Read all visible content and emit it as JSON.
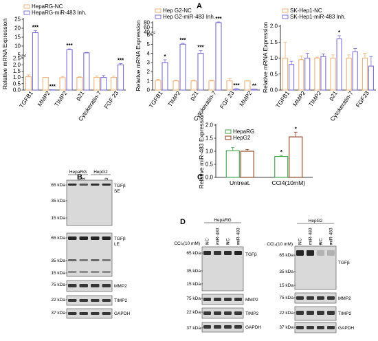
{
  "panel_labels": {
    "A": "A",
    "B": "B",
    "C": "C",
    "D": "D"
  },
  "chart_data": [
    {
      "type": "bar",
      "categories": [
        "TGFB1",
        "MMP2",
        "TIMP2",
        "p21",
        "Cytokeratin-7",
        "FGF 23"
      ],
      "series": [
        {
          "name": "HepaRG-NC",
          "values": [
            1.05,
            1.0,
            0.98,
            1.0,
            1.0,
            1.0
          ],
          "errors": [
            0.15,
            0,
            0.1,
            0.05,
            0.12,
            0.1
          ]
        },
        {
          "name": "HepaRG-miR-483 Inh.",
          "values": [
            17.5,
            0.02,
            8.0,
            6.2,
            1.0,
            2.0
          ],
          "errors": [
            1.2,
            0,
            0.4,
            0.25,
            0.15,
            0.1
          ]
        }
      ],
      "significance": [
        [
          "",
          "***"
        ],
        [
          "",
          "***"
        ],
        [
          "",
          "***"
        ],
        [
          "",
          ""
        ],
        [
          "",
          ""
        ],
        [
          "",
          "***"
        ]
      ],
      "ylabel": "Relative mRNA Expression",
      "y_ticks": [
        "0.0",
        "0.5",
        "1.0",
        "1.5",
        "2.0",
        "2.5",
        "5",
        "10",
        "15",
        "20",
        "25"
      ],
      "broken_axis": true,
      "legend_position": "top-left",
      "colors": [
        "#f0b27a",
        "#7b6fd6"
      ]
    },
    {
      "type": "bar",
      "categories": [
        "TGFB1",
        "TIMP2",
        "p21",
        "Cytokeratin-7",
        "FGF 23",
        "MMP2"
      ],
      "series": [
        {
          "name": "Hep G2-NC",
          "values": [
            1.05,
            1.0,
            1.0,
            1.0,
            1.0,
            1.0
          ],
          "errors": [
            0.12,
            0.1,
            0.1,
            0.1,
            0.25,
            0.0
          ]
        },
        {
          "name": "Hep G2-miR-483 Inh.",
          "values": [
            3.0,
            5.0,
            4.0,
            80,
            0.1,
            0.1
          ],
          "errors": [
            0.3,
            0.1,
            0.3,
            3,
            0.05,
            0.02
          ]
        }
      ],
      "significance": [
        [
          "",
          "*"
        ],
        [
          "",
          "***"
        ],
        [
          "",
          "***"
        ],
        [
          "",
          "***"
        ],
        [
          "",
          "***"
        ],
        [
          "",
          "**"
        ]
      ],
      "ylabel": "Relative mRNA Expression",
      "y_ticks": [
        "0",
        "1",
        "2",
        "3",
        "4",
        "5",
        "6",
        "40",
        "60",
        "80"
      ],
      "broken_axis": true,
      "legend_position": "top-left",
      "colors": [
        "#f0b27a",
        "#7b6fd6"
      ]
    },
    {
      "type": "bar",
      "categories": [
        "TGFB1",
        "MMP2",
        "TIMP2",
        "p21",
        "Cytokeratin-7",
        "FGF23"
      ],
      "series": [
        {
          "name": "SK-Hep1-NC",
          "values": [
            1.0,
            0.95,
            1.0,
            1.0,
            1.0,
            1.0
          ],
          "errors": [
            0.5,
            0.12,
            0.03,
            0.1,
            0.1,
            0.15
          ]
        },
        {
          "name": "SK-Hep1-miR-483 Inh.",
          "values": [
            0.8,
            1.0,
            1.05,
            1.6,
            1.2,
            0.75
          ],
          "errors": [
            0.1,
            0.15,
            0.08,
            0.1,
            0.1,
            0.3
          ]
        }
      ],
      "significance": [
        [
          "",
          ""
        ],
        [
          "",
          ""
        ],
        [
          "",
          ""
        ],
        [
          "",
          "*"
        ],
        [
          "",
          ""
        ],
        [
          "",
          ""
        ]
      ],
      "ylabel": "Relative mRNA Expression",
      "y_ticks": [
        "0.0",
        "0.5",
        "1.0",
        "1.5",
        "2.0"
      ],
      "ylim": [
        0,
        2.0
      ],
      "legend_position": "top-left",
      "colors": [
        "#f0b27a",
        "#7b6fd6"
      ]
    },
    {
      "type": "bar",
      "categories": [
        "Untreat.",
        "CCl4(10mM)"
      ],
      "series": [
        {
          "name": "HepaRG",
          "values": [
            1.02,
            0.8
          ],
          "errors": [
            0.12,
            0.04
          ]
        },
        {
          "name": "HepG2",
          "values": [
            1.0,
            1.55
          ],
          "errors": [
            0.07,
            0.18
          ]
        }
      ],
      "significance": [
        [
          "",
          ""
        ],
        [
          "*",
          "*"
        ]
      ],
      "ylabel": "Relative miR-483 Expression",
      "y_ticks": [
        "0.0",
        "0.5",
        "1.0",
        "1.5",
        "2.0"
      ],
      "ylim": [
        0,
        2.0
      ],
      "legend_position": "top-left",
      "colors": [
        "#3aa34a",
        "#8b3a1a"
      ]
    }
  ],
  "blot_B": {
    "groups": [
      "HepaRG",
      "HepG2"
    ],
    "lanes": [
      "NC",
      "miR-483",
      "NC",
      "miR-483"
    ],
    "strips": [
      {
        "markers": [
          "65 kDa",
          "35 kDa",
          "15 kDa"
        ],
        "label": "TGFβ\nSE",
        "label1": "TGFβ",
        "label2": "SE"
      },
      {
        "markers": [
          "65 kDa",
          "35 kDa",
          "15 kDa"
        ],
        "label1": "TGFβ",
        "label2": "LE"
      },
      {
        "markers": [
          "75 kDa"
        ],
        "label1": "MMP2"
      },
      {
        "markers": [
          "22 kDa"
        ],
        "label1": "TIMP2"
      },
      {
        "markers": [
          "37 kDa"
        ],
        "label1": "GAPDH"
      }
    ]
  },
  "blot_D_left": {
    "title": "HepaRG",
    "treat_label": "CCl₄(10 mM)",
    "lanes": [
      "NC",
      "miR-483",
      "NC",
      "miR-483"
    ],
    "treat": [
      "-",
      "-",
      "+",
      "+"
    ],
    "strips": [
      {
        "markers": [
          "65 kDa",
          "35 kDa",
          "15 kDa"
        ],
        "label1": "TGFβ"
      },
      {
        "markers": [
          "75 kDa"
        ],
        "label1": "MMP2"
      },
      {
        "markers": [
          "22 kDa"
        ],
        "label1": "TIMP2"
      },
      {
        "markers": [
          "37 kDa"
        ],
        "label1": "GAPDH"
      }
    ]
  },
  "blot_D_right": {
    "title": "HepG2",
    "treat_label": "CCl₄(10 mM)",
    "lanes": [
      "NC",
      "miR-483",
      "NC",
      "miR-483"
    ],
    "treat": [
      "-",
      "-",
      "+",
      "+"
    ],
    "strips": [
      {
        "markers": [
          "65 kDa",
          "35 kDa",
          "15 kDa"
        ],
        "label1": "TGFβ"
      },
      {
        "markers": [
          "75 kDa"
        ],
        "label1": "MMP2"
      },
      {
        "markers": [
          "22 kDa"
        ],
        "label1": "TIMP2"
      },
      {
        "markers": [
          "37 kDa"
        ],
        "label1": "GAPDH"
      }
    ]
  }
}
